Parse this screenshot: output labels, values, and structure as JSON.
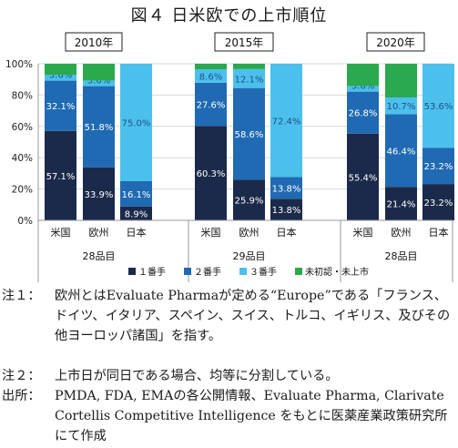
{
  "figure_title": "図４ 日米欧での上市順位",
  "chart_data": {
    "type": "bar",
    "stacked": true,
    "ylim": [
      0,
      100
    ],
    "yticks": [
      "0%",
      "20%",
      "40%",
      "60%",
      "80%",
      "100%"
    ],
    "grid": true,
    "legend_placement": "bottom",
    "categories": [
      "米国",
      "欧州",
      "日本"
    ],
    "series": [
      {
        "name": "１番手",
        "color": "#1b2a4a"
      },
      {
        "name": "２番手",
        "color": "#1f6ab3"
      },
      {
        "name": "３番手",
        "color": "#4cc0ec"
      },
      {
        "name": "未初認・未上市",
        "color": "#2aa94e"
      }
    ],
    "groups": [
      {
        "label": "2010年",
        "count_label": "28品目",
        "bars": [
          {
            "category": "米国",
            "values": [
              57.1,
              32.1,
              3.6,
              7.2
            ],
            "labels": [
              "57.1%",
              "32.1%",
              "3.6%",
              ""
            ]
          },
          {
            "category": "欧州",
            "values": [
              33.9,
              51.8,
              3.6,
              10.7
            ],
            "labels": [
              "33.9%",
              "51.8%",
              "3.6%",
              ""
            ]
          },
          {
            "category": "日本",
            "values": [
              8.9,
              16.1,
              75.0,
              0.0
            ],
            "labels": [
              "8.9%",
              "16.1%",
              "75.0%",
              ""
            ]
          }
        ]
      },
      {
        "label": "2015年",
        "count_label": "29品目",
        "bars": [
          {
            "category": "米国",
            "values": [
              60.3,
              27.6,
              8.6,
              3.5
            ],
            "labels": [
              "60.3%",
              "27.6%",
              "8.6%",
              ""
            ]
          },
          {
            "category": "欧州",
            "values": [
              25.9,
              58.6,
              12.1,
              3.4
            ],
            "labels": [
              "25.9%",
              "58.6%",
              "12.1%",
              ""
            ]
          },
          {
            "category": "日本",
            "values": [
              13.8,
              13.8,
              72.4,
              0.0
            ],
            "labels": [
              "13.8%",
              "13.8%",
              "72.4%",
              ""
            ]
          }
        ]
      },
      {
        "label": "2020年",
        "count_label": "28品目",
        "bars": [
          {
            "category": "米国",
            "values": [
              55.4,
              26.8,
              3.6,
              14.2
            ],
            "labels": [
              "55.4%",
              "26.8%",
              "3.6%",
              ""
            ]
          },
          {
            "category": "欧州",
            "values": [
              21.4,
              46.4,
              10.7,
              21.5
            ],
            "labels": [
              "21.4%",
              "46.4%",
              "10.7%",
              ""
            ]
          },
          {
            "category": "日本",
            "values": [
              23.2,
              23.2,
              53.6,
              0.0
            ],
            "labels": [
              "23.2%",
              "23.2%",
              "53.6%",
              ""
            ]
          }
        ]
      }
    ]
  },
  "notes": [
    {
      "label": "注１：",
      "text": "欧州とはEvaluate Pharmaが定める“Europe”である「フランス、ドイツ、イタリア、スペイン、スイス、トルコ、イギリス、及びその他ヨーロッパ諸国」を指す。"
    },
    {
      "label": "注２：",
      "text": "上市日が同日である場合、均等に分割している。"
    },
    {
      "label": "出所：",
      "text": "PMDA, FDA, EMAの各公開情報、Evaluate Pharma, Clarivate Cortellis Competitive Intelligence をもとに医薬産業政策研究所にて作成"
    }
  ]
}
